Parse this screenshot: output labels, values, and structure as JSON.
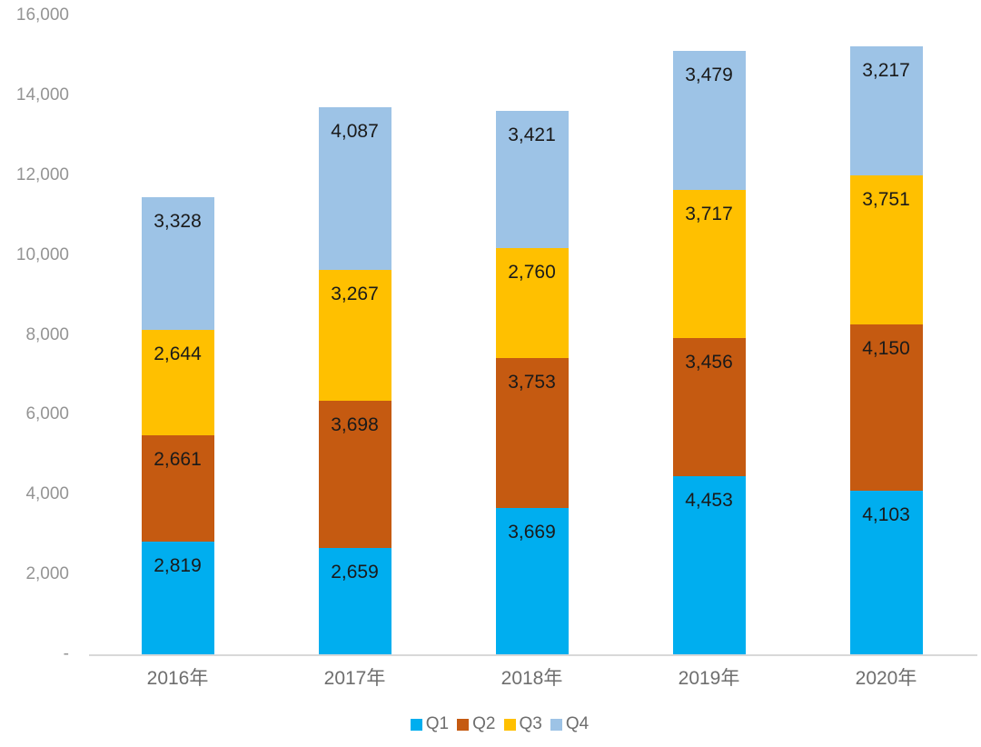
{
  "chart_data": {
    "type": "bar",
    "variant": "stacked-column",
    "title": "",
    "xlabel": "",
    "ylabel": "",
    "grid": false,
    "categories": [
      "2016年",
      "2017年",
      "2018年",
      "2019年",
      "2020年"
    ],
    "series": [
      {
        "name": "Q1",
        "color": "#00AEEF",
        "values": [
          2819,
          2659,
          3669,
          4453,
          4103
        ]
      },
      {
        "name": "Q2",
        "color": "#C55A11",
        "values": [
          2661,
          3698,
          3753,
          3456,
          4150
        ]
      },
      {
        "name": "Q3",
        "color": "#FFC000",
        "values": [
          2644,
          3267,
          2760,
          3717,
          3751
        ]
      },
      {
        "name": "Q4",
        "color": "#9DC3E6",
        "values": [
          3328,
          4087,
          3421,
          3479,
          3217
        ]
      }
    ],
    "data_labels": [
      "2,819",
      "2,659",
      "3,669",
      "4,453",
      "4,103",
      "2,661",
      "3,698",
      "3,753",
      "3,456",
      "4,150",
      "2,644",
      "3,267",
      "2,760",
      "3,717",
      "3,751",
      "3,328",
      "4,087",
      "3,421",
      "3,479",
      "3,217"
    ],
    "y_axis": {
      "min": 0,
      "max": 16000,
      "tick_interval": 2000,
      "tick_labels": [
        "-",
        "2,000",
        "4,000",
        "6,000",
        "8,000",
        "10,000",
        "12,000",
        "14,000",
        "16,000"
      ]
    },
    "legend": {
      "position": "bottom",
      "entries": [
        "Q1",
        "Q2",
        "Q3",
        "Q4"
      ]
    },
    "axis_line_color": "#D9D9D9"
  }
}
